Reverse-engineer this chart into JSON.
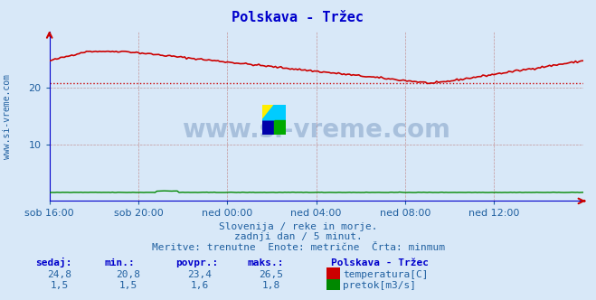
{
  "title": "Polskava - Tržec",
  "title_color": "#0000cc",
  "bg_color": "#d8e8f8",
  "plot_bg_color": "#d8e8f8",
  "grid_color": "#c08080",
  "text_color": "#2060a0",
  "xticklabels": [
    "sob 16:00",
    "sob 20:00",
    "ned 00:00",
    "ned 04:00",
    "ned 08:00",
    "ned 12:00"
  ],
  "xtick_positions": [
    0,
    48,
    96,
    144,
    192,
    240
  ],
  "n_points": 289,
  "ylim": [
    0,
    30
  ],
  "yticks": [
    10,
    20
  ],
  "temp_min": 20.8,
  "temp_max": 26.5,
  "temp_avg": 23.4,
  "temp_current": 24.8,
  "flow_min": 1.5,
  "flow_max": 1.8,
  "flow_avg": 1.6,
  "flow_current": 1.5,
  "temp_color": "#cc0000",
  "flow_color": "#008800",
  "avg_line_color": "#cc0000",
  "sub_text1": "Slovenija / reke in morje.",
  "sub_text2": "zadnji dan / 5 minut.",
  "sub_text3": "Meritve: trenutne  Enote: metrične  Črta: minmum",
  "label_sedaj": "sedaj:",
  "label_min": "min.:",
  "label_povpr": "povpr.:",
  "label_maks": "maks.:",
  "label_station": "Polskava - Tržec",
  "label_temp": "temperatura[C]",
  "label_flow": "pretok[m3/s]",
  "ylabel_text": "www.si-vreme.com",
  "ylabel_color": "#2060a0",
  "logo_colors": [
    "#ffee00",
    "#00ccff",
    "#0000aa",
    "#00aa00"
  ],
  "watermark_text": "www.si-vreme.com",
  "watermark_color": "#1a4a8a",
  "watermark_alpha": 0.25
}
